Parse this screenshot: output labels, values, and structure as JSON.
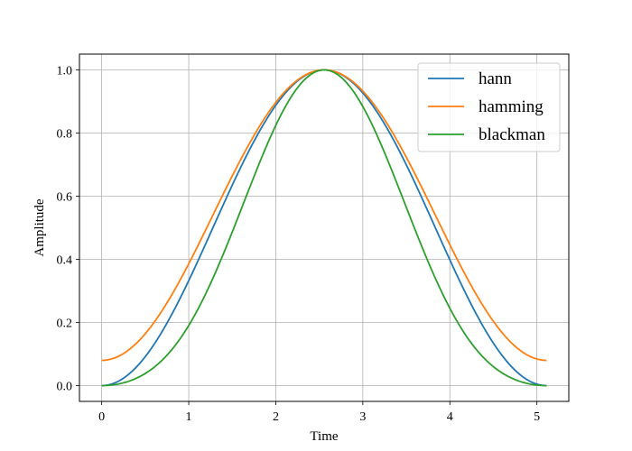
{
  "chart_data": {
    "type": "line",
    "xlabel": "Time",
    "ylabel": "Amplitude",
    "xlim": [
      -0.2556,
      5.3666
    ],
    "ylim": [
      -0.05,
      1.05
    ],
    "xticks": [
      0,
      1,
      2,
      3,
      4,
      5
    ],
    "yticks": [
      0.0,
      0.2,
      0.4,
      0.6,
      0.8,
      1.0
    ],
    "xtick_labels": [
      "0",
      "1",
      "2",
      "3",
      "4",
      "5"
    ],
    "ytick_labels": [
      "0.0",
      "0.2",
      "0.4",
      "0.6",
      "0.8",
      "1.0"
    ],
    "grid": true,
    "legend_position": "top-right",
    "x_start": 0,
    "x_end": 5.111,
    "series": [
      {
        "name": "hann",
        "color": "#1f77b4",
        "window": "hann",
        "a": [
          0.5,
          0.5,
          0
        ]
      },
      {
        "name": "hamming",
        "color": "#ff7f0e",
        "window": "hamming",
        "a": [
          0.54,
          0.46,
          0
        ]
      },
      {
        "name": "blackman",
        "color": "#2ca02c",
        "window": "blackman",
        "a": [
          0.42,
          0.5,
          0.08
        ]
      }
    ]
  }
}
